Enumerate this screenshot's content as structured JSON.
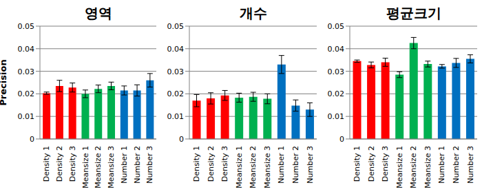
{
  "chart_data": [
    {
      "type": "bar",
      "title": "영역",
      "y_label": "Precision",
      "categories": [
        "Density 1",
        "Density 2",
        "Density 3",
        "Meansize 1",
        "Meansize 2",
        "Meansize 3",
        "Number 1",
        "Number 2",
        "Number 3"
      ],
      "values": [
        0.0203,
        0.0235,
        0.0228,
        0.02,
        0.0222,
        0.0235,
        0.0215,
        0.0215,
        0.026
      ],
      "errors": [
        0.0005,
        0.0025,
        0.002,
        0.0017,
        0.0017,
        0.0017,
        0.002,
        0.0025,
        0.003
      ],
      "colors": [
        "#ff0000",
        "#ff0000",
        "#ff0000",
        "#00b050",
        "#00b050",
        "#00b050",
        "#0070c0",
        "#0070c0",
        "#0070c0"
      ],
      "ylim": [
        0,
        0.05
      ],
      "yticks": [
        0,
        0.01,
        0.02,
        0.03,
        0.04,
        0.05
      ],
      "grid": true
    },
    {
      "type": "bar",
      "title": "개수",
      "categories": [
        "Density 1",
        "Density 2",
        "Density 3",
        "Meansize 1",
        "Meansize 2",
        "Meansize 3",
        "Number 1",
        "Number 2",
        "Number 3"
      ],
      "values": [
        0.017,
        0.018,
        0.0193,
        0.0183,
        0.0187,
        0.0178,
        0.033,
        0.0148,
        0.013
      ],
      "errors": [
        0.0027,
        0.0025,
        0.0022,
        0.002,
        0.002,
        0.0022,
        0.004,
        0.0025,
        0.003
      ],
      "colors": [
        "#ff0000",
        "#ff0000",
        "#ff0000",
        "#00b050",
        "#00b050",
        "#00b050",
        "#0070c0",
        "#0070c0",
        "#0070c0"
      ],
      "ylim": [
        0,
        0.05
      ],
      "yticks": [
        0,
        0.01,
        0.02,
        0.03,
        0.04,
        0.05
      ],
      "grid": true
    },
    {
      "type": "bar",
      "title": "평균크기",
      "categories": [
        "Density 1",
        "Density 2",
        "Density 3",
        "Meansize 1",
        "Meansize 2",
        "Meansize 3",
        "Number 1",
        "Number 2",
        "Number 3"
      ],
      "values": [
        0.0345,
        0.0328,
        0.034,
        0.0285,
        0.0425,
        0.0332,
        0.0322,
        0.0337,
        0.0355
      ],
      "errors": [
        0.0005,
        0.0013,
        0.0018,
        0.0013,
        0.0025,
        0.0013,
        0.0008,
        0.002,
        0.0018
      ],
      "colors": [
        "#ff0000",
        "#ff0000",
        "#ff0000",
        "#00b050",
        "#00b050",
        "#00b050",
        "#0070c0",
        "#0070c0",
        "#0070c0"
      ],
      "ylim": [
        0,
        0.05
      ],
      "yticks": [
        0,
        0.01,
        0.02,
        0.03,
        0.04,
        0.05
      ],
      "grid": true
    }
  ]
}
